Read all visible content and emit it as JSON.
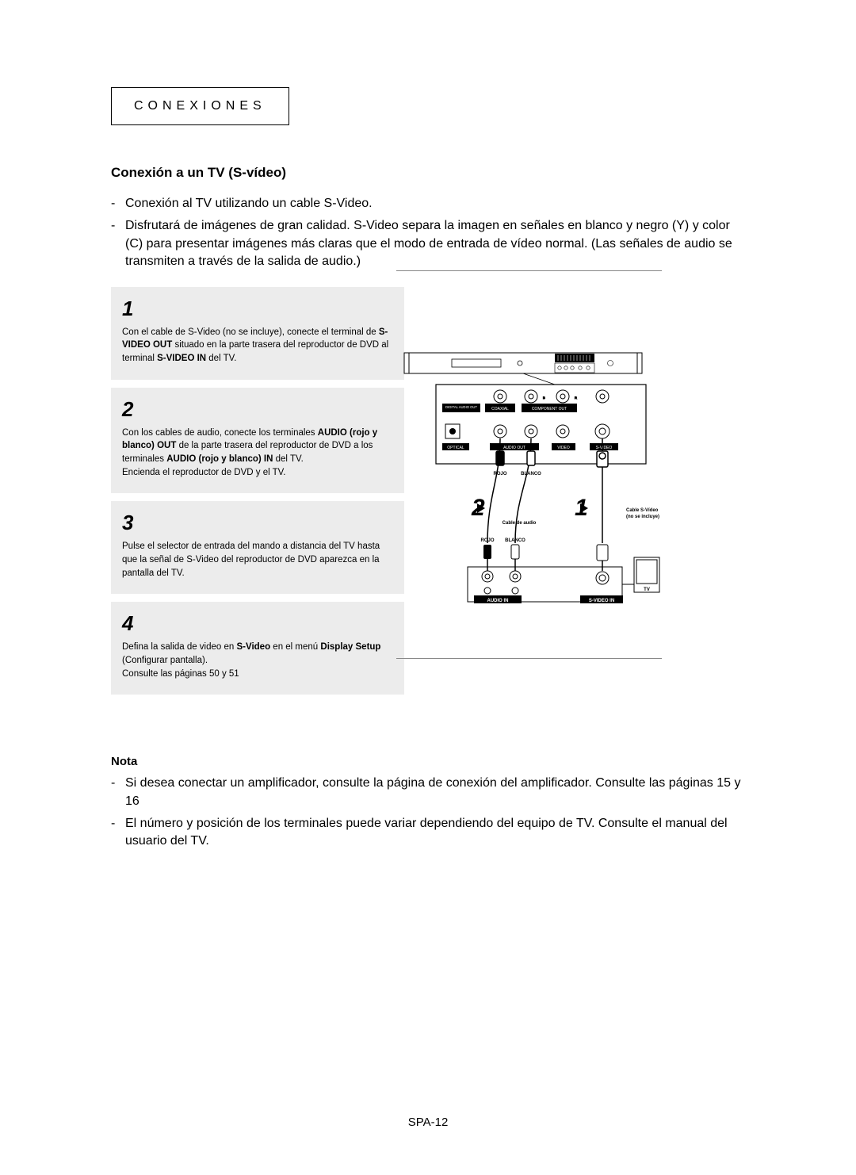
{
  "header": {
    "label": "CONEXIONES"
  },
  "title": "Conexión a un TV (S-vídeo)",
  "intro": [
    "Conexión al TV utilizando un cable S-Video.",
    "Disfrutará de imágenes de gran calidad. S-Video separa la imagen en señales en blanco y negro (Y) y color (C) para presentar imágenes más claras que el modo de entrada de vídeo normal. (Las señales de audio se transmiten a través de la salida de audio.)"
  ],
  "steps": [
    {
      "num": "1",
      "html": "Con el cable de S-Video (no se incluye), conecte el terminal de <b>S-VIDEO OUT</b> situado en la parte trasera del reproductor de DVD al terminal <b>S-VIDEO IN</b> del TV."
    },
    {
      "num": "2",
      "html": "Con los cables de audio, conecte los terminales <b>AUDIO (rojo y blanco) OUT</b> de la parte trasera del reproductor de DVD a los terminales <b>AUDIO (rojo y blanco) IN</b> del TV.<br>Encienda el reproductor de DVD y el TV."
    },
    {
      "num": "3",
      "html": "Pulse el selector de entrada del mando a distancia del TV hasta que la señal de S-Video del reproductor de DVD aparezca en la pantalla del TV."
    },
    {
      "num": "4",
      "html": "Defina la salida de video en <b>S-Video</b> en el menú <b>Display Setup</b> (Configurar pantalla).<br>Consulte las páginas 50 y 51"
    }
  ],
  "diagram": {
    "type": "wiring-diagram",
    "colors": {
      "stroke": "#000000",
      "fill_dark": "#000000",
      "fill_light": "#ffffff",
      "gray": "#cccccc"
    },
    "rear_panel": {
      "labels": {
        "digital_audio_out": "DIGITAL AUDIO OUT",
        "coaxial": "COAXIAL",
        "component_out": "COMPONENT OUT",
        "optical": "OPTICAL",
        "audio_out": "AUDIO OUT",
        "video": "VIDEO",
        "svideo": "S-VIDEO"
      }
    },
    "callouts": {
      "step1": "1",
      "step2": "2",
      "cable_audio": "Cable de audio",
      "cable_svideo_1": "Cable S-Vídeo",
      "cable_svideo_2": "(no se incluye)",
      "rojo": "ROJO",
      "blanco": "BLANCO",
      "audio_in": "AUDIO IN",
      "svideo_in": "S-VIDEO IN",
      "tv": "TV"
    }
  },
  "nota": {
    "title": "Nota",
    "items": [
      "Si desea conectar un amplificador, consulte la página de conexión del amplificador. Consulte las páginas 15 y 16",
      "El número y posición de los terminales puede variar dependiendo del equipo de TV. Consulte el manual del usuario del TV."
    ]
  },
  "page_number": "SPA-12"
}
